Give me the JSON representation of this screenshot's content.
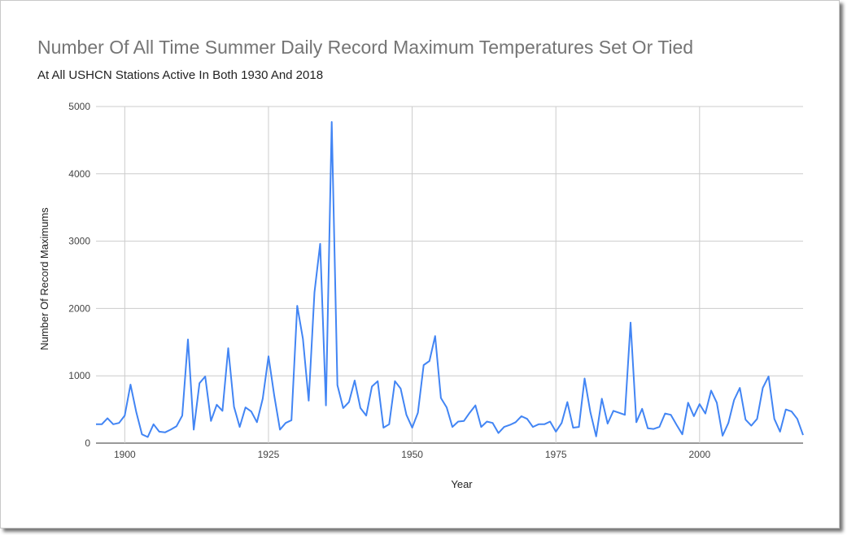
{
  "chart_data": {
    "type": "line",
    "title": "Number Of All Time Summer Daily Record Maximum Temperatures Set Or Tied",
    "subtitle": "At All USHCN Stations Active In Both 1930 And 2018",
    "xlabel": "Year",
    "ylabel": "Number Of Record Maximums",
    "xlim": [
      1895,
      2018
    ],
    "ylim": [
      0,
      5000
    ],
    "x_ticks": [
      "1900",
      "1925",
      "1950",
      "1975",
      "2000"
    ],
    "y_ticks": [
      "0",
      "1000",
      "2000",
      "3000",
      "4000",
      "5000"
    ],
    "grid": true,
    "legend": "none",
    "line_color": "#4285f4",
    "series": [
      {
        "x": [
          1895,
          1896,
          1897,
          1898,
          1899,
          1900,
          1901,
          1902,
          1903,
          1904,
          1905,
          1906,
          1907,
          1908,
          1909,
          1910,
          1911,
          1912,
          1913,
          1914,
          1915,
          1916,
          1917,
          1918,
          1919,
          1920,
          1921,
          1922,
          1923,
          1924,
          1925,
          1926,
          1927,
          1928,
          1929,
          1930,
          1931,
          1932,
          1933,
          1934,
          1935,
          1936,
          1937,
          1938,
          1939,
          1940,
          1941,
          1942,
          1943,
          1944,
          1945,
          1946,
          1947,
          1948,
          1949,
          1950,
          1951,
          1952,
          1953,
          1954,
          1955,
          1956,
          1957,
          1958,
          1959,
          1960,
          1961,
          1962,
          1963,
          1964,
          1965,
          1966,
          1967,
          1968,
          1969,
          1970,
          1971,
          1972,
          1973,
          1974,
          1975,
          1976,
          1977,
          1978,
          1979,
          1980,
          1981,
          1982,
          1983,
          1984,
          1985,
          1986,
          1987,
          1988,
          1989,
          1990,
          1991,
          1992,
          1993,
          1994,
          1995,
          1996,
          1997,
          1998,
          1999,
          2000,
          2001,
          2002,
          2003,
          2004,
          2005,
          2006,
          2007,
          2008,
          2009,
          2010,
          2011,
          2012,
          2013,
          2014,
          2015,
          2016,
          2017,
          2018
        ],
        "values": [
          280,
          280,
          370,
          280,
          300,
          410,
          870,
          460,
          130,
          90,
          280,
          170,
          160,
          200,
          250,
          410,
          1540,
          200,
          890,
          990,
          330,
          570,
          480,
          1410,
          540,
          240,
          530,
          470,
          310,
          660,
          1290,
          710,
          200,
          300,
          340,
          2040,
          1550,
          630,
          2240,
          2960,
          560,
          4770,
          860,
          520,
          610,
          930,
          520,
          410,
          840,
          920,
          230,
          280,
          920,
          810,
          420,
          230,
          450,
          1160,
          1220,
          1590,
          670,
          530,
          240,
          320,
          330,
          450,
          560,
          240,
          320,
          300,
          150,
          240,
          270,
          310,
          400,
          360,
          240,
          280,
          280,
          320,
          170,
          300,
          610,
          230,
          240,
          960,
          460,
          100,
          660,
          290,
          480,
          450,
          420,
          1790,
          310,
          510,
          220,
          210,
          240,
          440,
          420,
          270,
          130,
          600,
          400,
          580,
          440,
          780,
          600,
          110,
          300,
          640,
          820,
          350,
          260,
          360,
          820,
          990,
          360,
          170,
          500,
          470,
          360,
          120
        ]
      }
    ]
  }
}
